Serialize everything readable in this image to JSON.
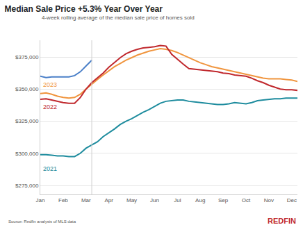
{
  "chart_data": {
    "type": "line",
    "title": "Median Sale Price +5.3% Year Over Year",
    "subtitle": "4-week rolling average of the median sale price of homes sold",
    "source": "Source: Redfin analysis of MLS data",
    "logo": "REDFIN",
    "categories": [
      "Jan",
      null,
      null,
      null,
      "Feb",
      null,
      null,
      null,
      "Mar",
      null,
      null,
      null,
      "Apr",
      null,
      null,
      null,
      "May",
      null,
      null,
      null,
      "Jun",
      null,
      null,
      null,
      "Jul",
      null,
      null,
      null,
      "Aug",
      null,
      null,
      null,
      "Sep",
      null,
      null,
      null,
      "Oct",
      null,
      null,
      null,
      "Nov",
      null,
      null,
      null,
      "Dec",
      null
    ],
    "series": [
      {
        "color": "#4a7fc8",
        "values": [
          360000,
          359000,
          359500,
          359500,
          359500,
          359500,
          360500,
          363500,
          368000,
          372500,
          null,
          null,
          null,
          null,
          null,
          null,
          null,
          null,
          null,
          null,
          null,
          null,
          null,
          null,
          null,
          null,
          null,
          null,
          null,
          null,
          null,
          null,
          null,
          null,
          null,
          null,
          null,
          null,
          null,
          null,
          null,
          null,
          null,
          null,
          null,
          null
        ]
      },
      {
        "name": "2023",
        "color": "#f0953e",
        "values": [
          346500,
          347000,
          346000,
          344500,
          343500,
          343000,
          343500,
          346000,
          350000,
          354000,
          357500,
          361000,
          364500,
          367500,
          370000,
          372500,
          374500,
          376500,
          378000,
          379500,
          380500,
          381500,
          381000,
          380000,
          378500,
          376500,
          374500,
          372500,
          370500,
          369000,
          367500,
          366500,
          365500,
          364500,
          363500,
          362500,
          361500,
          360500,
          359500,
          358500,
          358000,
          358000,
          358000,
          357500,
          357000,
          356000
        ]
      },
      {
        "name": "2022",
        "color": "#c0282d",
        "values": [
          342000,
          342500,
          341500,
          340500,
          339500,
          339000,
          339000,
          343500,
          350000,
          355000,
          358500,
          362500,
          367000,
          371000,
          374500,
          377500,
          379500,
          381000,
          382000,
          382500,
          383000,
          384000,
          383500,
          377000,
          373000,
          369500,
          366000,
          365500,
          365000,
          364500,
          364000,
          363500,
          362500,
          362000,
          361000,
          360500,
          360000,
          358500,
          356500,
          355000,
          353000,
          351500,
          350000,
          349500,
          349500,
          349000
        ]
      },
      {
        "name": "2021",
        "color": "#1e8c9e",
        "values": [
          299000,
          299000,
          298500,
          298000,
          298000,
          297500,
          297500,
          300000,
          304000,
          306500,
          309000,
          313000,
          316000,
          319000,
          322500,
          325000,
          327000,
          329500,
          332000,
          334000,
          336500,
          339000,
          340500,
          341000,
          341500,
          341500,
          340500,
          340000,
          339500,
          339000,
          338500,
          338000,
          338000,
          338500,
          339500,
          339000,
          338500,
          339500,
          341000,
          341500,
          342000,
          342500,
          342500,
          343000,
          343000,
          343000
        ]
      }
    ],
    "ylim": [
      268000,
      388000
    ],
    "yticks": [
      {
        "value": 275000,
        "label": "$275,000"
      },
      {
        "value": 300000,
        "label": "$300,000"
      },
      {
        "value": 325000,
        "label": "$325,000"
      },
      {
        "value": 350000,
        "label": "$350,000"
      },
      {
        "value": 375000,
        "label": "$375,000"
      }
    ],
    "grid": true
  }
}
